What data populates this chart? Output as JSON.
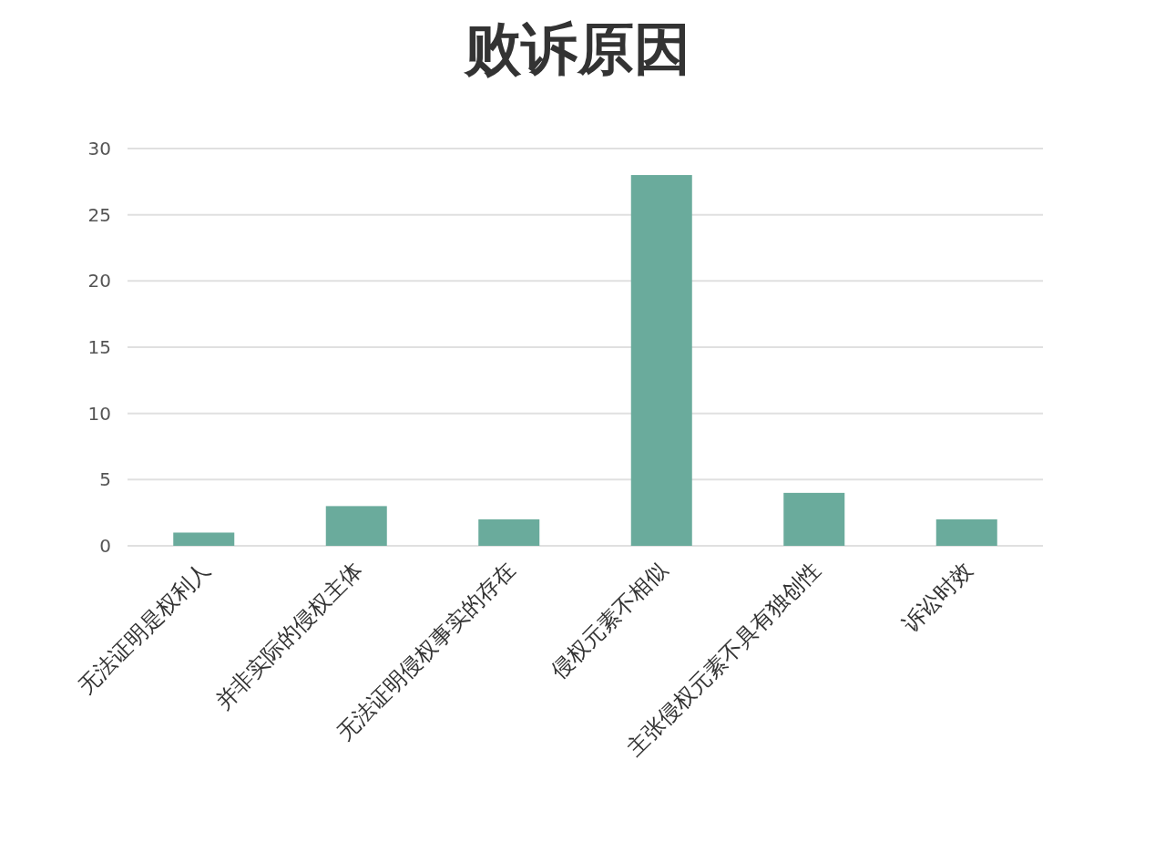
{
  "chart_data": {
    "type": "bar",
    "title": "败诉原因",
    "categories": [
      "无法证明是权利人",
      "并非实际的侵权主体",
      "无法证明侵权事实的存在",
      "侵权元素不相似",
      "主张侵权元素不具有独创性",
      "诉讼时效"
    ],
    "values": [
      1,
      3,
      2,
      28,
      4,
      2
    ],
    "color": "#6aab9c",
    "ylim": [
      0,
      30
    ],
    "yticks": [
      0,
      5,
      10,
      15,
      20,
      25,
      30
    ],
    "grid": "y"
  }
}
